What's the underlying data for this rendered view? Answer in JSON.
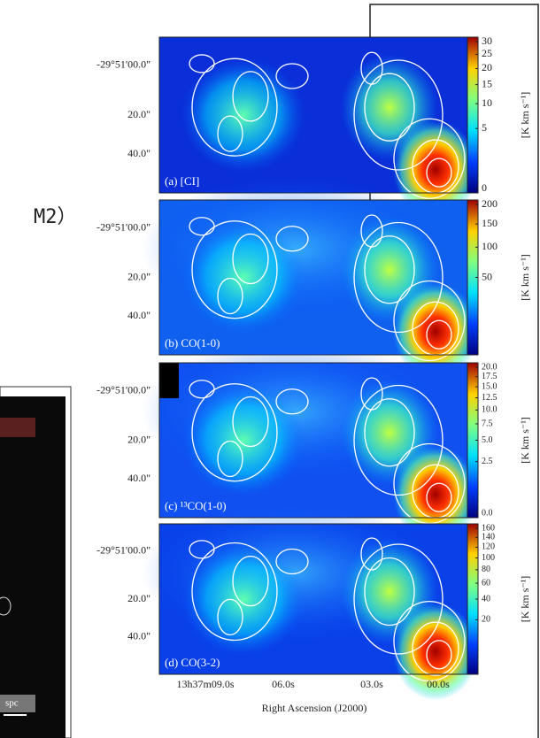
{
  "background_text": "M2）",
  "inset": {
    "scale_label": "spc"
  },
  "figure": {
    "panels": [
      {
        "label": "(a) [CI]",
        "yticks": [
          "-29°51'00.0\"",
          "20.0\"",
          "40.0\""
        ],
        "colorbar_ticks": [
          "30",
          "25",
          "20",
          "15",
          "10",
          "5",
          "0"
        ],
        "colorbar_label": "[K km s⁻¹]"
      },
      {
        "label": "(b) CO(1-0)",
        "yticks": [
          "-29°51'00.0\"",
          "20.0\"",
          "40.0\""
        ],
        "colorbar_ticks": [
          "200",
          "150",
          "100",
          "50"
        ],
        "colorbar_label": "[K km s⁻¹]"
      },
      {
        "label": "(c) ¹³CO(1-0)",
        "yticks": [
          "-29°51'00.0\"",
          "20.0\"",
          "40.0\""
        ],
        "colorbar_ticks": [
          "20.0",
          "17.5",
          "15.0",
          "12.5",
          "10.0",
          "7.5",
          "5.0",
          "2.5",
          "0.0"
        ],
        "colorbar_label": "[K km s⁻¹]"
      },
      {
        "label": "(d) CO(3-2)",
        "yticks": [
          "-29°51'00.0\"",
          "20.0\"",
          "40.0\""
        ],
        "colorbar_ticks": [
          "160",
          "140",
          "120",
          "100",
          "80",
          "60",
          "40",
          "20"
        ],
        "colorbar_label": "[K km s⁻¹]"
      }
    ],
    "xticks": [
      "13h37m09.0s",
      "06.0s",
      "03.0s",
      "00.0s"
    ],
    "xlabel": "Right Ascension (J2000)"
  }
}
